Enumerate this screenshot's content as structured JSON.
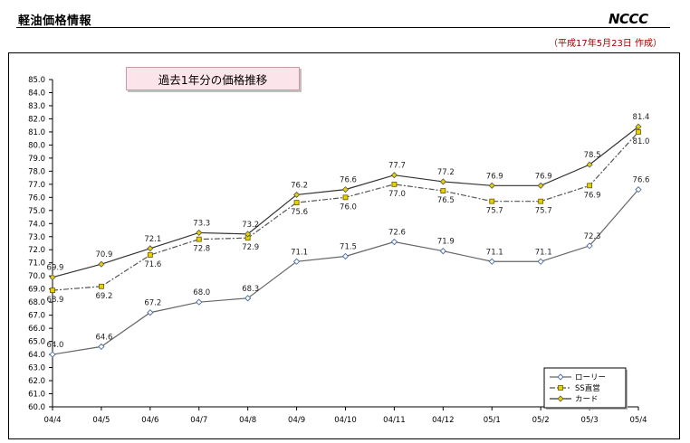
{
  "header": {
    "title": "軽油価格情報",
    "logo_text": "NCCC",
    "date_note": "（平成17年5月23日 作成）"
  },
  "chart_data": {
    "type": "line",
    "title": "過去1年分の価格推移",
    "categories": [
      "04/4",
      "04/5",
      "04/6",
      "04/7",
      "04/8",
      "04/9",
      "04/10",
      "04/11",
      "04/12",
      "05/1",
      "05/2",
      "05/3",
      "05/4"
    ],
    "ylim": [
      60.0,
      85.0
    ],
    "ytick_step": 1.0,
    "grid": false,
    "legend_position": "bottom-right",
    "series": [
      {
        "name": "ローリー",
        "color": "#666666",
        "dash": "",
        "marker": "diamond-open",
        "values": [
          64.0,
          64.6,
          67.2,
          68.0,
          68.3,
          71.1,
          71.5,
          72.6,
          71.9,
          71.1,
          71.1,
          72.3,
          76.6
        ]
      },
      {
        "name": "SS直営",
        "color": "#555555",
        "dash": "6,2,2,2",
        "marker": "square-yellow",
        "values": [
          68.9,
          69.2,
          71.6,
          72.8,
          72.9,
          75.6,
          76.0,
          77.0,
          76.5,
          75.7,
          75.7,
          76.9,
          81.0
        ]
      },
      {
        "name": "カード",
        "color": "#333333",
        "dash": "",
        "marker": "diamond-yellow",
        "values": [
          69.9,
          70.9,
          72.1,
          73.3,
          73.2,
          76.2,
          76.6,
          77.7,
          77.2,
          76.9,
          76.9,
          78.5,
          81.4
        ]
      }
    ]
  }
}
